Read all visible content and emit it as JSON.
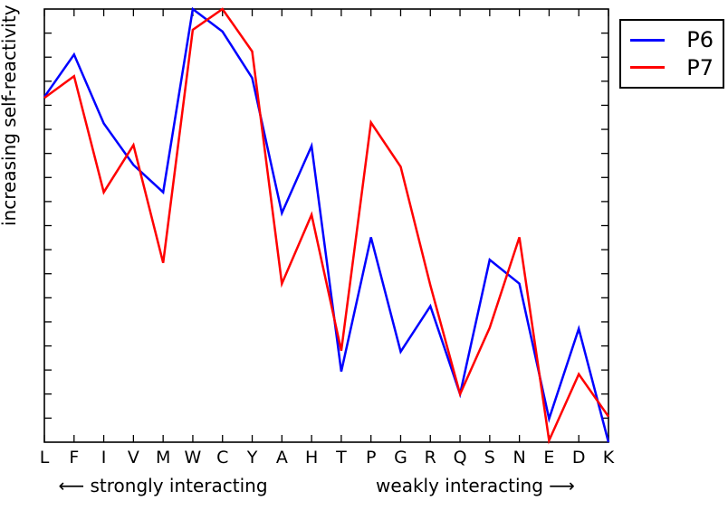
{
  "figure": {
    "background": "#ffffff",
    "axis_color": "#000000",
    "ylabel": "increasing self-reactivity ⟶",
    "annotation_left": "⟵ strongly interacting",
    "annotation_right": "weakly interacting ⟶"
  },
  "legend": {
    "position": "outside-top-right",
    "entries": [
      {
        "label": "P6",
        "color": "#0000ff"
      },
      {
        "label": "P7",
        "color": "#ff0000"
      }
    ]
  },
  "chart_data": {
    "type": "line",
    "title": "",
    "xlabel": "",
    "ylabel": "increasing self-reactivity ⟶",
    "categories": [
      "L",
      "F",
      "I",
      "V",
      "M",
      "W",
      "C",
      "Y",
      "A",
      "H",
      "T",
      "P",
      "G",
      "R",
      "Q",
      "S",
      "N",
      "E",
      "D",
      "K"
    ],
    "series": [
      {
        "name": "P6",
        "color": "#0000ff",
        "values": [
          0.797,
          0.895,
          0.736,
          0.64,
          0.577,
          1.0,
          0.948,
          0.841,
          0.529,
          0.684,
          0.163,
          0.473,
          0.209,
          0.314,
          0.111,
          0.421,
          0.366,
          0.054,
          0.262,
          0.0
        ]
      },
      {
        "name": "P7",
        "color": "#ff0000",
        "values": [
          0.795,
          0.845,
          0.577,
          0.686,
          0.414,
          0.952,
          1.0,
          0.902,
          0.366,
          0.525,
          0.211,
          0.738,
          0.636,
          0.362,
          0.111,
          0.264,
          0.473,
          0.004,
          0.157,
          0.059
        ]
      }
    ],
    "ylim": [
      0,
      1
    ],
    "y_axis_tick_labels": "none (unlabeled tick marks only)",
    "y_minor_tick_intervals": 18,
    "ticks_direction": "in",
    "grid": false,
    "legend_position": "upper right, outside axes",
    "x_axis_annotations": [
      "⟵ strongly interacting",
      "weakly interacting ⟶"
    ]
  }
}
